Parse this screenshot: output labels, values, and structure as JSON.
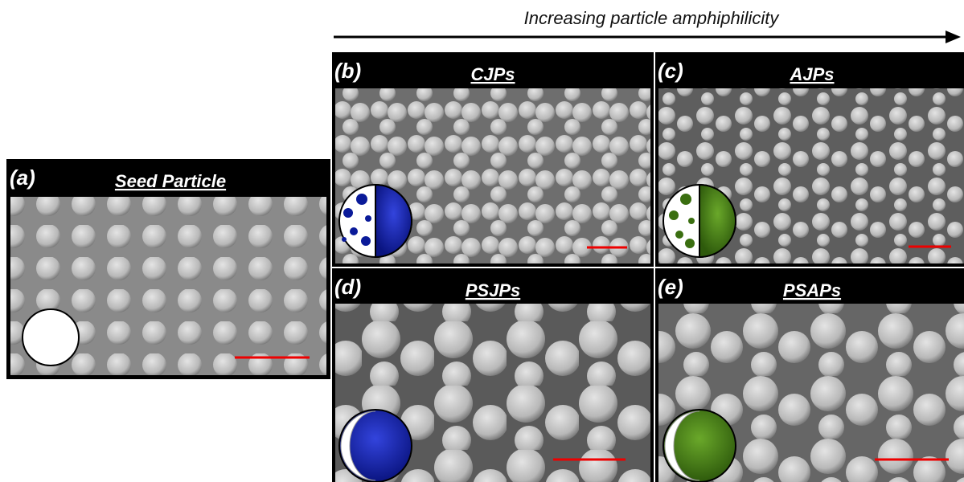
{
  "arrow_label": "Increasing particle amphiphilicity",
  "panels": [
    {
      "letter": "(a)",
      "title": "Seed Particle"
    },
    {
      "letter": "(b)",
      "title": "CJPs"
    },
    {
      "letter": "(c)",
      "title": "AJPs"
    },
    {
      "letter": "(d)",
      "title": "PSJPs"
    },
    {
      "letter": "(e)",
      "title": "PSAPs"
    }
  ]
}
